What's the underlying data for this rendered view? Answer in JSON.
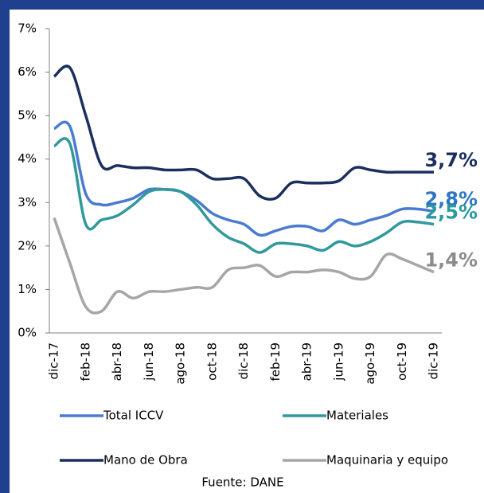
{
  "chart_data": {
    "type": "line",
    "categories": [
      "dic-17",
      null,
      "feb-18",
      null,
      "abr-18",
      null,
      "jun-18",
      null,
      "ago-18",
      null,
      "oct-18",
      null,
      "dic-18",
      null,
      "feb-19",
      null,
      "abr-19",
      null,
      "jun-19",
      null,
      "ago-19",
      null,
      "oct-19",
      null,
      "dic-19"
    ],
    "series": [
      {
        "name": "Total ICCV",
        "color": "#4a7bd0",
        "label_color": "#2e75c6",
        "end_label": "2,8%",
        "values": [
          4.7,
          4.75,
          3.2,
          2.95,
          3.0,
          3.1,
          3.3,
          3.3,
          3.25,
          3.05,
          2.75,
          2.6,
          2.5,
          2.25,
          2.35,
          2.45,
          2.45,
          2.35,
          2.6,
          2.5,
          2.6,
          2.7,
          2.85,
          2.85,
          2.8
        ]
      },
      {
        "name": "Materiales",
        "color": "#31999c",
        "label_color": "#2a9a9e",
        "end_label": "2,5%",
        "values": [
          4.3,
          4.35,
          2.5,
          2.6,
          2.7,
          2.95,
          3.25,
          3.3,
          3.25,
          2.95,
          2.5,
          2.2,
          2.05,
          1.85,
          2.05,
          2.05,
          2.0,
          1.9,
          2.1,
          2.0,
          2.1,
          2.3,
          2.55,
          2.55,
          2.5
        ]
      },
      {
        "name": "Mano de Obra",
        "color": "#1b2f5e",
        "label_color": "#1b2f5e",
        "end_label": "3,7%",
        "values": [
          5.9,
          6.1,
          5.0,
          3.85,
          3.85,
          3.8,
          3.8,
          3.75,
          3.75,
          3.75,
          3.55,
          3.55,
          3.55,
          3.15,
          3.1,
          3.45,
          3.45,
          3.45,
          3.5,
          3.8,
          3.75,
          3.7,
          3.7,
          3.7,
          3.7
        ]
      },
      {
        "name": "Maquinaria y equipo",
        "color": "#a6a6a6",
        "label_color": "#8c8c8c",
        "end_label": "1,4%",
        "values": [
          2.65,
          1.6,
          0.6,
          0.5,
          0.95,
          0.8,
          0.95,
          0.95,
          1.0,
          1.05,
          1.05,
          1.45,
          1.5,
          1.55,
          1.3,
          1.4,
          1.4,
          1.45,
          1.4,
          1.25,
          1.3,
          1.8,
          1.7,
          1.55,
          1.4
        ]
      }
    ],
    "ylim": [
      0,
      7
    ],
    "yticks": [
      {
        "value": 0,
        "label": "0%"
      },
      {
        "value": 1,
        "label": "1%"
      },
      {
        "value": 2,
        "label": "2%"
      },
      {
        "value": 3,
        "label": "3%"
      },
      {
        "value": 4,
        "label": "4%"
      },
      {
        "value": 5,
        "label": "5%"
      },
      {
        "value": 6,
        "label": "6%"
      },
      {
        "value": 7,
        "label": "7%"
      }
    ],
    "grid": false,
    "source": "Fuente: DANE"
  }
}
